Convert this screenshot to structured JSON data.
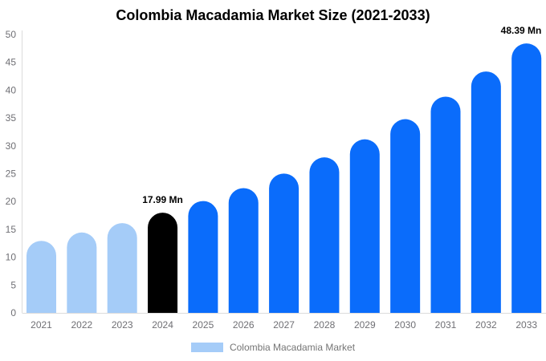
{
  "header": {
    "title": "Colombia Macadamia Market Size (2021-2033)"
  },
  "legend": {
    "label": "Colombia Macadamia Market",
    "swatch_color": "#A5CCF8"
  },
  "colors": {
    "historical_bar": "#A5CCF8",
    "base_year_bar": "#000000",
    "forecast_bar": "#0A6CFB",
    "axis_line": "#DCDCDC",
    "tick_text": "#6F6F74",
    "data_label_text": "#000000"
  },
  "chart_data": {
    "type": "bar",
    "title": "Colombia Macadamia Market Size (2021-2033)",
    "unit": "Mn",
    "categories": [
      "2021",
      "2022",
      "2023",
      "2024",
      "2025",
      "2026",
      "2027",
      "2028",
      "2029",
      "2030",
      "2031",
      "2032",
      "2033"
    ],
    "series": [
      {
        "name": "Colombia Macadamia Market",
        "values": [
          12.94,
          14.44,
          16.12,
          17.99,
          20.08,
          22.41,
          25.02,
          27.93,
          31.17,
          34.79,
          38.84,
          43.35,
          48.39
        ]
      }
    ],
    "bar_colors": [
      "#A5CCF8",
      "#A5CCF8",
      "#A5CCF8",
      "#000000",
      "#0A6CFB",
      "#0A6CFB",
      "#0A6CFB",
      "#0A6CFB",
      "#0A6CFB",
      "#0A6CFB",
      "#0A6CFB",
      "#0A6CFB",
      "#0A6CFB"
    ],
    "data_labels": [
      {
        "category": "2024",
        "text": "17.99 Mn"
      },
      {
        "category": "2033",
        "text": "48.39 Mn"
      }
    ],
    "ylim": [
      0,
      50
    ],
    "ytick_step": 5,
    "yticks": [
      0,
      5,
      10,
      15,
      20,
      25,
      30,
      35,
      40,
      45,
      50
    ],
    "grid": false,
    "legend_position": "bottom",
    "axis_color": "#DCDCDC"
  }
}
